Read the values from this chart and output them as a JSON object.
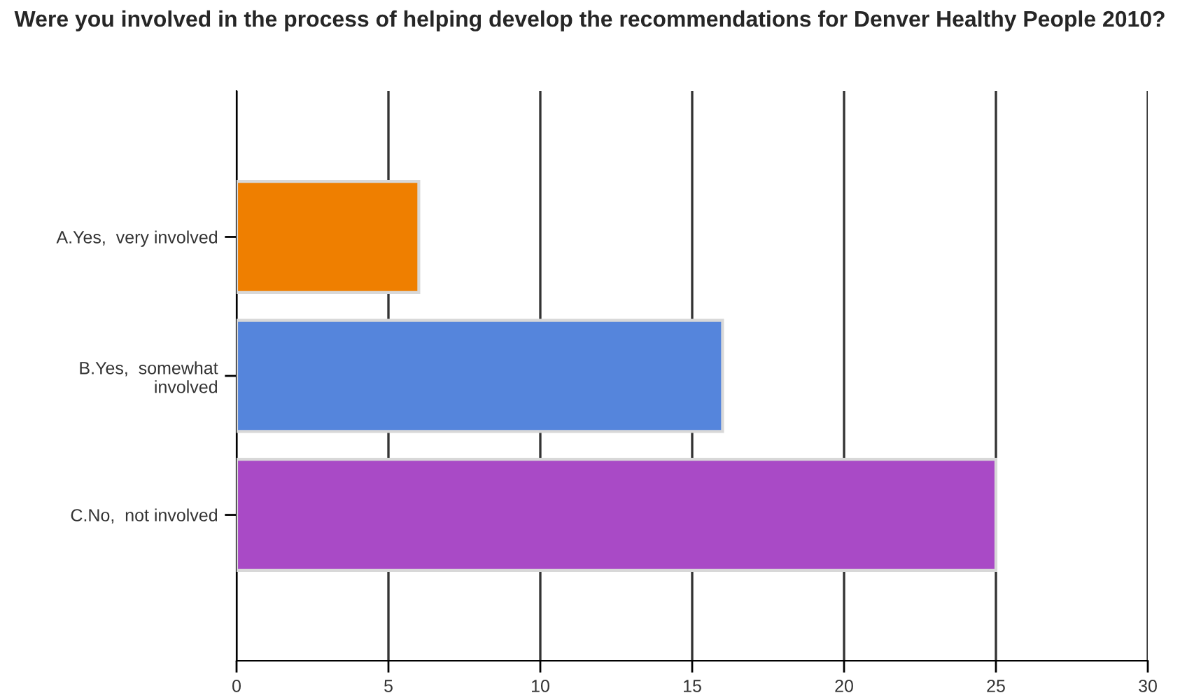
{
  "chart_data": {
    "type": "bar",
    "orientation": "horizontal",
    "title": "Were you involved in the process of helping develop the recommendations for Denver Healthy People 2010?",
    "categories": [
      "A.Yes,  very involved",
      "B.Yes,  somewhat\ninvolved",
      "C.No,  not involved"
    ],
    "values": [
      6,
      16,
      25
    ],
    "colors": [
      "#ef7f00",
      "#5585dc",
      "#a94ac6"
    ],
    "xlim": [
      0,
      30
    ],
    "xticks": [
      0,
      5,
      10,
      15,
      20,
      25,
      30
    ],
    "grid": "x"
  }
}
